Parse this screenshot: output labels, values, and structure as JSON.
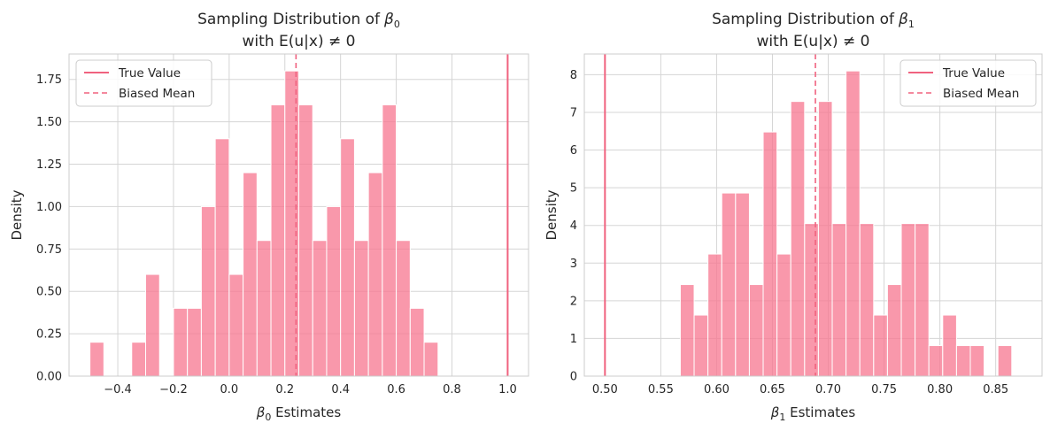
{
  "colors": {
    "bar": "#f7768f",
    "true_line": "#f0627f",
    "mean_line": "#f0627f",
    "grid": "#d5d5d5",
    "frame": "#cccccc"
  },
  "chart_data": [
    {
      "type": "bar",
      "title_line1": "Sampling Distribution of",
      "title_symbol": "β",
      "title_sub": "0",
      "title_line2": "with E(u|x) ≠ 0",
      "xlabel_symbol": "β",
      "xlabel_sub": "0",
      "xlabel_rest": " Estimates",
      "ylabel": "Density",
      "xlim": [
        -0.575,
        1.075
      ],
      "ylim": [
        0,
        1.9
      ],
      "xticks": [
        -0.4,
        -0.2,
        0.0,
        0.2,
        0.4,
        0.6,
        0.8,
        1.0
      ],
      "xtick_labels": [
        "−0.4",
        "−0.2",
        "0.0",
        "0.2",
        "0.4",
        "0.6",
        "0.8",
        "1.0"
      ],
      "yticks": [
        0.0,
        0.25,
        0.5,
        0.75,
        1.0,
        1.25,
        1.5,
        1.75
      ],
      "ytick_labels": [
        "0.00",
        "0.25",
        "0.50",
        "0.75",
        "1.00",
        "1.25",
        "1.50",
        "1.75"
      ],
      "bin_start": -0.5,
      "bin_width": 0.05,
      "values": [
        0.2,
        0,
        0,
        0.2,
        0.6,
        0,
        0.4,
        0.4,
        1.0,
        1.4,
        0.6,
        1.2,
        0.8,
        1.6,
        1.8,
        1.6,
        0.8,
        1.0,
        1.4,
        0.8,
        1.2,
        1.6,
        0.8,
        0.4,
        0.2
      ],
      "true_value": 1.0,
      "biased_mean": 0.24,
      "legend": {
        "position": "upper left",
        "true_label": "True Value",
        "mean_label": "Biased Mean"
      },
      "grid": true
    },
    {
      "type": "bar",
      "title_line1": "Sampling Distribution of",
      "title_symbol": "β",
      "title_sub": "1",
      "title_line2": "with E(u|x) ≠ 0",
      "xlabel_symbol": "β",
      "xlabel_sub": "1",
      "xlabel_rest": " Estimates",
      "ylabel": "Density",
      "xlim": [
        0.4815,
        0.8915
      ],
      "ylim": [
        0,
        8.55
      ],
      "xticks": [
        0.5,
        0.55,
        0.6,
        0.65,
        0.7,
        0.75,
        0.8,
        0.85
      ],
      "xtick_labels": [
        "0.50",
        "0.55",
        "0.60",
        "0.65",
        "0.70",
        "0.75",
        "0.80",
        "0.85"
      ],
      "yticks": [
        0,
        1,
        2,
        3,
        4,
        5,
        6,
        7,
        8
      ],
      "ytick_labels": [
        "0",
        "1",
        "2",
        "3",
        "4",
        "5",
        "6",
        "7",
        "8"
      ],
      "bin_start": 0.5675,
      "bin_width": 0.01237,
      "values": [
        2.43,
        1.62,
        3.24,
        4.86,
        4.86,
        2.43,
        6.48,
        3.24,
        7.29,
        4.05,
        7.29,
        4.05,
        8.1,
        4.05,
        1.62,
        2.43,
        4.05,
        4.05,
        0.81,
        1.62,
        0.81,
        0.81,
        0,
        0.81
      ],
      "true_value": 0.5,
      "biased_mean": 0.6885,
      "legend": {
        "position": "upper right",
        "true_label": "True Value",
        "mean_label": "Biased Mean"
      },
      "grid": true
    }
  ]
}
